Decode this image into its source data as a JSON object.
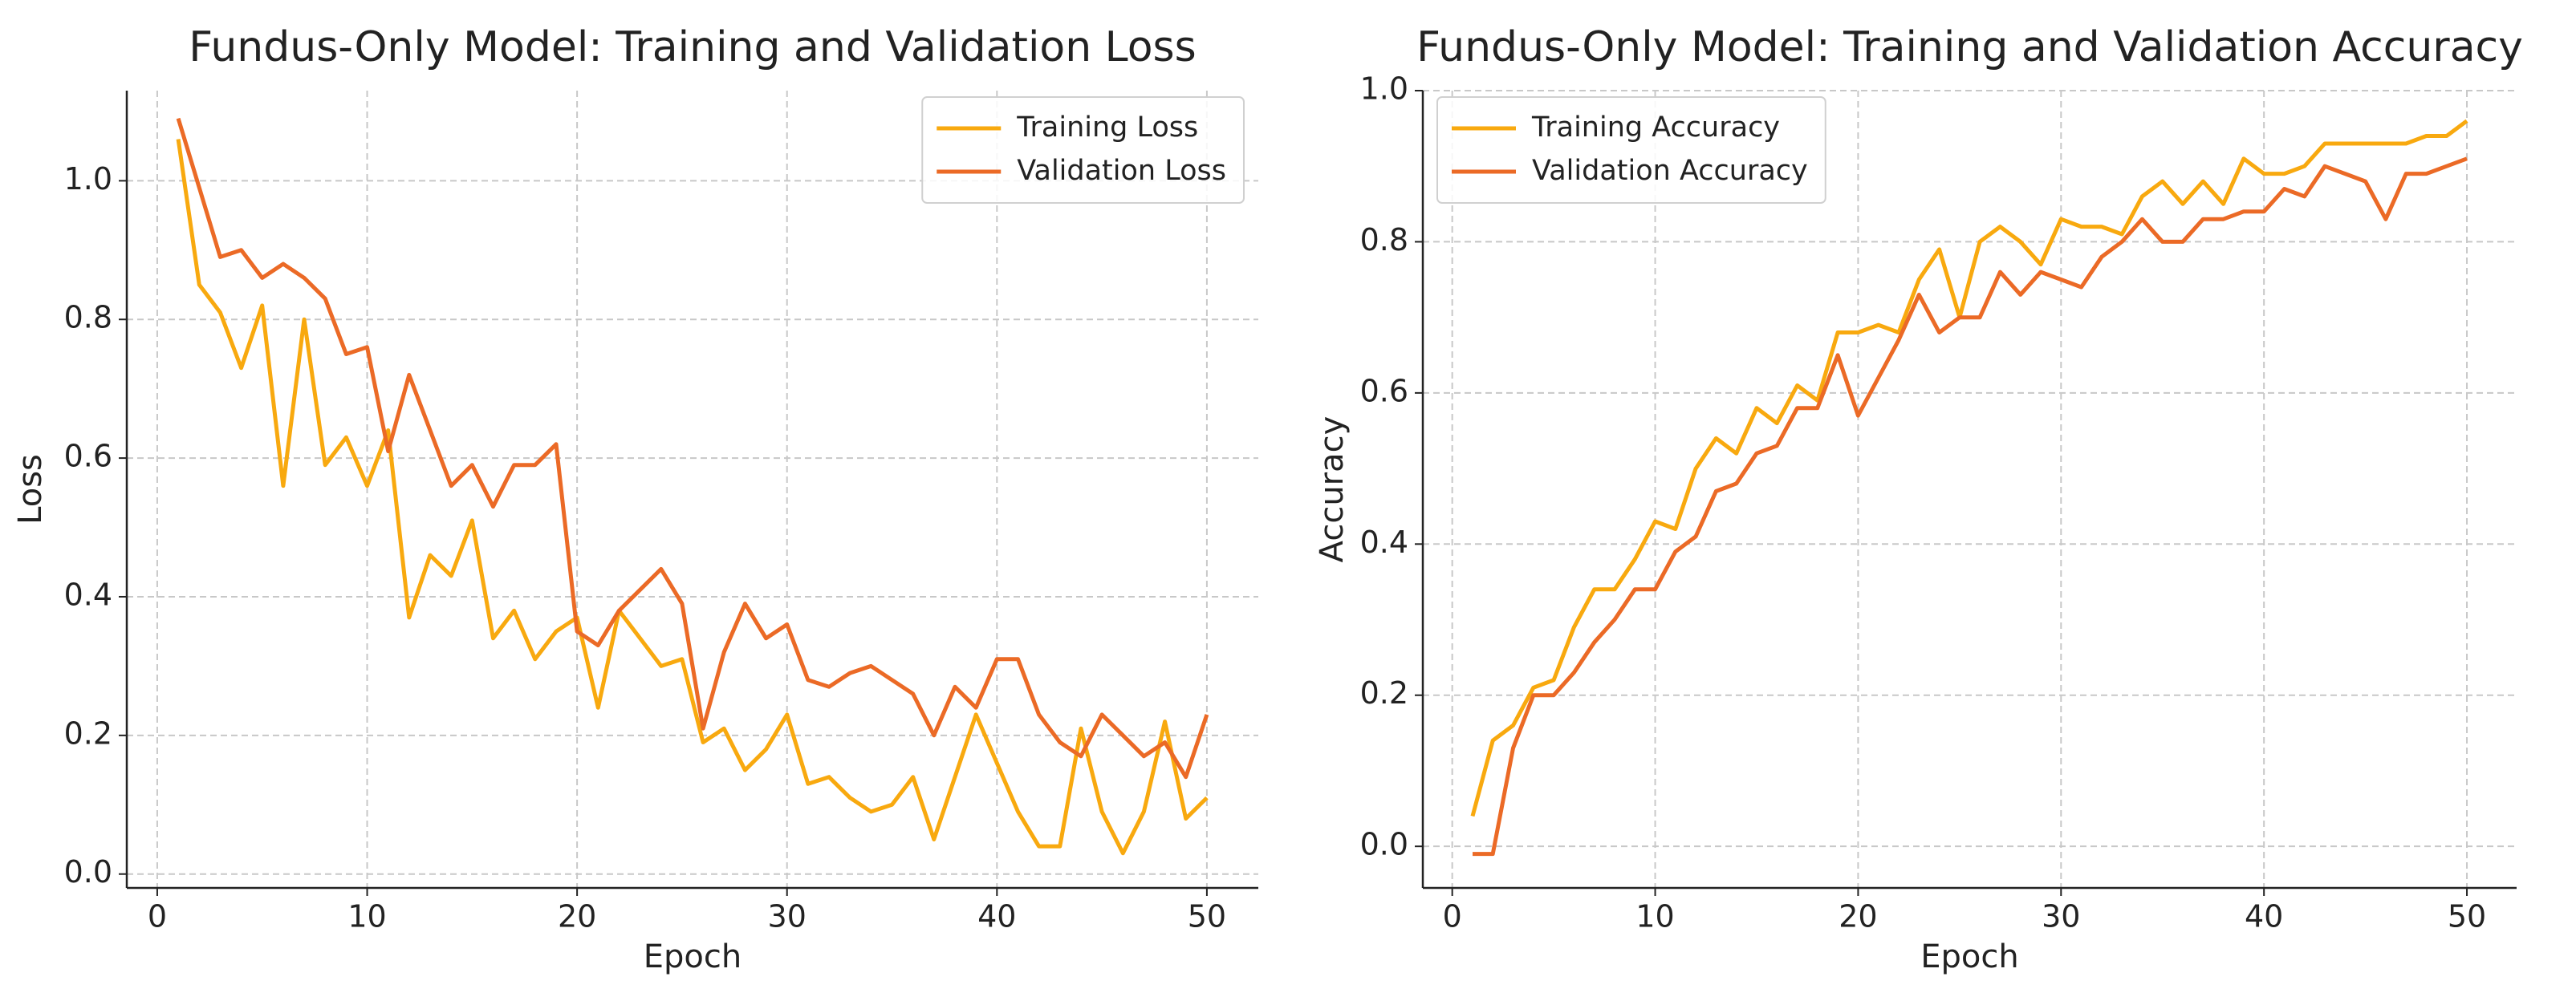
{
  "chart_data": [
    {
      "type": "line",
      "title": "Fundus-Only Model: Training and Validation Loss",
      "xlabel": "Epoch",
      "ylabel": "Loss",
      "x": [
        1,
        2,
        3,
        4,
        5,
        6,
        7,
        8,
        9,
        10,
        11,
        12,
        13,
        14,
        15,
        16,
        17,
        18,
        19,
        20,
        21,
        22,
        23,
        24,
        25,
        26,
        27,
        28,
        29,
        30,
        31,
        32,
        33,
        34,
        35,
        36,
        37,
        38,
        39,
        40,
        41,
        42,
        43,
        44,
        45,
        46,
        47,
        48,
        49,
        50
      ],
      "series": [
        {
          "name": "Training Loss",
          "color": "#f8a90f",
          "values": [
            1.06,
            0.85,
            0.81,
            0.73,
            0.82,
            0.56,
            0.8,
            0.59,
            0.63,
            0.56,
            0.64,
            0.37,
            0.46,
            0.43,
            0.51,
            0.34,
            0.38,
            0.31,
            0.35,
            0.37,
            0.24,
            0.38,
            0.34,
            0.3,
            0.31,
            0.19,
            0.21,
            0.15,
            0.18,
            0.23,
            0.13,
            0.14,
            0.11,
            0.09,
            0.1,
            0.14,
            0.05,
            0.14,
            0.23,
            0.16,
            0.09,
            0.04,
            0.04,
            0.21,
            0.09,
            0.03,
            0.09,
            0.22,
            0.08,
            0.11
          ]
        },
        {
          "name": "Validation Loss",
          "color": "#eb6a26",
          "values": [
            1.09,
            0.99,
            0.89,
            0.9,
            0.86,
            0.88,
            0.86,
            0.83,
            0.75,
            0.76,
            0.61,
            0.72,
            0.64,
            0.56,
            0.59,
            0.53,
            0.59,
            0.59,
            0.62,
            0.35,
            0.33,
            0.38,
            0.41,
            0.44,
            0.39,
            0.21,
            0.32,
            0.39,
            0.34,
            0.36,
            0.28,
            0.27,
            0.29,
            0.3,
            0.28,
            0.26,
            0.2,
            0.27,
            0.24,
            0.31,
            0.31,
            0.23,
            0.19,
            0.17,
            0.23,
            0.2,
            0.17,
            0.19,
            0.14,
            0.23
          ]
        }
      ],
      "xlim": [
        -1.45,
        52.45
      ],
      "ylim": [
        -0.02,
        1.13
      ],
      "xticks": [
        0,
        10,
        20,
        30,
        40,
        50
      ],
      "yticks": [
        {
          "value": 0,
          "label": "0.0"
        },
        0.2,
        0.4,
        0.6,
        0.8,
        {
          "value": 1,
          "label": "1.0"
        }
      ],
      "grid": true,
      "legend": "upper right"
    },
    {
      "type": "line",
      "title": "Fundus-Only Model: Training and Validation Accuracy",
      "xlabel": "Epoch",
      "ylabel": "Accuracy",
      "x": [
        1,
        2,
        3,
        4,
        5,
        6,
        7,
        8,
        9,
        10,
        11,
        12,
        13,
        14,
        15,
        16,
        17,
        18,
        19,
        20,
        21,
        22,
        23,
        24,
        25,
        26,
        27,
        28,
        29,
        30,
        31,
        32,
        33,
        34,
        35,
        36,
        37,
        38,
        39,
        40,
        41,
        42,
        43,
        44,
        45,
        46,
        47,
        48,
        49,
        50
      ],
      "series": [
        {
          "name": "Training Accuracy",
          "color": "#f8a90f",
          "values": [
            0.04,
            0.14,
            0.16,
            0.21,
            0.22,
            0.29,
            0.34,
            0.34,
            0.38,
            0.43,
            0.42,
            0.5,
            0.54,
            0.52,
            0.58,
            0.56,
            0.61,
            0.59,
            0.68,
            0.68,
            0.69,
            0.68,
            0.75,
            0.79,
            0.7,
            0.8,
            0.82,
            0.8,
            0.77,
            0.83,
            0.82,
            0.82,
            0.81,
            0.86,
            0.88,
            0.85,
            0.88,
            0.85,
            0.91,
            0.89,
            0.89,
            0.9,
            0.93,
            0.93,
            0.93,
            0.93,
            0.93,
            0.94,
            0.94,
            0.96
          ]
        },
        {
          "name": "Validation Accuracy",
          "color": "#eb6a26",
          "values": [
            -0.01,
            -0.01,
            0.13,
            0.2,
            0.2,
            0.23,
            0.27,
            0.3,
            0.34,
            0.34,
            0.39,
            0.41,
            0.47,
            0.48,
            0.52,
            0.53,
            0.58,
            0.58,
            0.65,
            0.57,
            0.62,
            0.67,
            0.73,
            0.68,
            0.7,
            0.7,
            0.76,
            0.73,
            0.76,
            0.75,
            0.74,
            0.78,
            0.8,
            0.83,
            0.8,
            0.8,
            0.83,
            0.83,
            0.84,
            0.84,
            0.87,
            0.86,
            0.9,
            0.89,
            0.88,
            0.83,
            0.89,
            0.89,
            0.9,
            0.91
          ]
        }
      ],
      "xlim": [
        -1.45,
        52.45
      ],
      "ylim": [
        -0.055,
        1.0
      ],
      "xticks": [
        0,
        10,
        20,
        30,
        40,
        50
      ],
      "yticks": [
        {
          "value": 0,
          "label": "0.0"
        },
        0.2,
        0.4,
        0.6,
        0.8,
        {
          "value": 1,
          "label": "1.0"
        }
      ],
      "grid": true,
      "legend": "upper left"
    }
  ]
}
